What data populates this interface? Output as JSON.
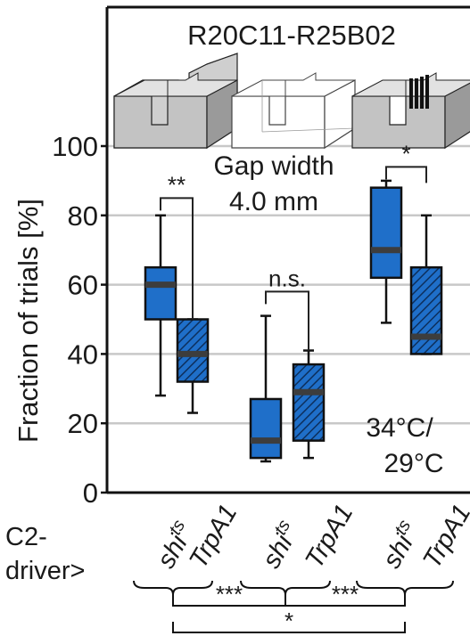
{
  "chart_data": {
    "type": "box",
    "title": "R20C11-R25B02",
    "ylabel": "Fraction of trials [%]",
    "xlabel": "",
    "ylim": [
      0,
      100
    ],
    "yticks": [
      0,
      20,
      40,
      60,
      80,
      100
    ],
    "grid": true,
    "annotations": {
      "gap_line1": "Gap width",
      "gap_line2": "4.0 mm",
      "temp_line1": "34°C/",
      "temp_line2": "29°C"
    },
    "x_axis_label": {
      "line1": "C2-",
      "line2": "driver>"
    },
    "genotypes": [
      {
        "base": "shi",
        "sup": "ts"
      },
      {
        "base": "TrpA1",
        "sup": ""
      }
    ],
    "colors": {
      "shits": "#1f6fc9",
      "trpa1": "#1f6fc9",
      "median": "#3d3d3d",
      "grid": "#c8c8c8"
    },
    "groups": [
      {
        "boxes": [
          {
            "genotype": "shits",
            "min": 28,
            "q1": 50,
            "median": 60,
            "q3": 65,
            "max": 80
          },
          {
            "genotype": "TrpA1",
            "min": 23,
            "q1": 32,
            "median": 40,
            "q3": 50,
            "max": 50
          }
        ],
        "significance": "**"
      },
      {
        "boxes": [
          {
            "genotype": "shits",
            "min": 9,
            "q1": 10,
            "median": 15,
            "q3": 27,
            "max": 51
          },
          {
            "genotype": "TrpA1",
            "min": 10,
            "q1": 15,
            "median": 29,
            "q3": 37,
            "max": 41
          }
        ],
        "significance": "n.s."
      },
      {
        "boxes": [
          {
            "genotype": "shits",
            "min": 49,
            "q1": 62,
            "median": 70,
            "q3": 88,
            "max": 90
          },
          {
            "genotype": "TrpA1",
            "min": 40,
            "q1": 40,
            "median": 45,
            "q3": 65,
            "max": 80
          }
        ],
        "significance": "*"
      }
    ],
    "between_group_significance": [
      {
        "from": 1,
        "to": 2,
        "label": "***"
      },
      {
        "from": 2,
        "to": 3,
        "label": "***"
      },
      {
        "from": 1,
        "to": 3,
        "label": "*"
      }
    ]
  }
}
